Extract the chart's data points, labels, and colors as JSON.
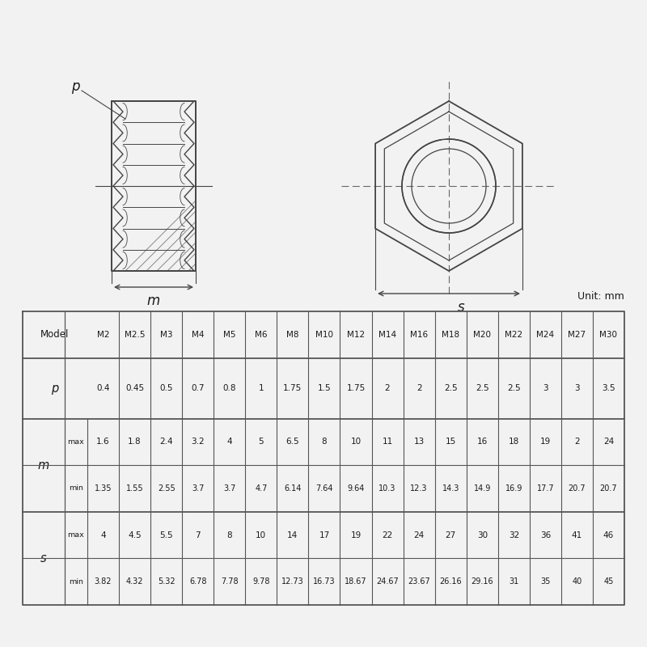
{
  "bg_color": "#f2f2f2",
  "unit_text": "Unit: mm",
  "models": [
    "M2",
    "M2.5",
    "M3",
    "M4",
    "M5",
    "M6",
    "M8",
    "M10",
    "M12",
    "M14",
    "M16",
    "M18",
    "M20",
    "M22",
    "M24",
    "M27",
    "M30"
  ],
  "p_values": [
    "0.4",
    "0.45",
    "0.5",
    "0.7",
    "0.8",
    "1",
    "1.75",
    "1.5",
    "1.75",
    "2",
    "2",
    "2.5",
    "2.5",
    "2.5",
    "3",
    "3",
    "3.5"
  ],
  "m_max": [
    "1.6",
    "1.8",
    "2.4",
    "3.2",
    "4",
    "5",
    "6.5",
    "8",
    "10",
    "11",
    "13",
    "15",
    "16",
    "18",
    "19",
    "2",
    "24"
  ],
  "m_min": [
    "1.35",
    "1.55",
    "2.55",
    "3.7",
    "3.7",
    "4.7",
    "6.14",
    "7.64",
    "9.64",
    "10.3",
    "12.3",
    "14.3",
    "14.9",
    "16.9",
    "17.7",
    "20.7",
    "20.7"
  ],
  "s_max": [
    "4",
    "4.5",
    "5.5",
    "7",
    "8",
    "10",
    "14",
    "17",
    "19",
    "22",
    "24",
    "27",
    "30",
    "32",
    "36",
    "41",
    "46"
  ],
  "s_min": [
    "3.82",
    "4.32",
    "5.32",
    "6.78",
    "7.78",
    "9.78",
    "12.73",
    "16.73",
    "18.67",
    "24.67",
    "23.67",
    "26.16",
    "29.16",
    "31",
    "35",
    "40",
    "45"
  ],
  "line_color": "#444444",
  "table_line_color": "#555555",
  "text_color": "#1a1a1a",
  "hatch_color": "#888888",
  "dashed_color": "#666666"
}
